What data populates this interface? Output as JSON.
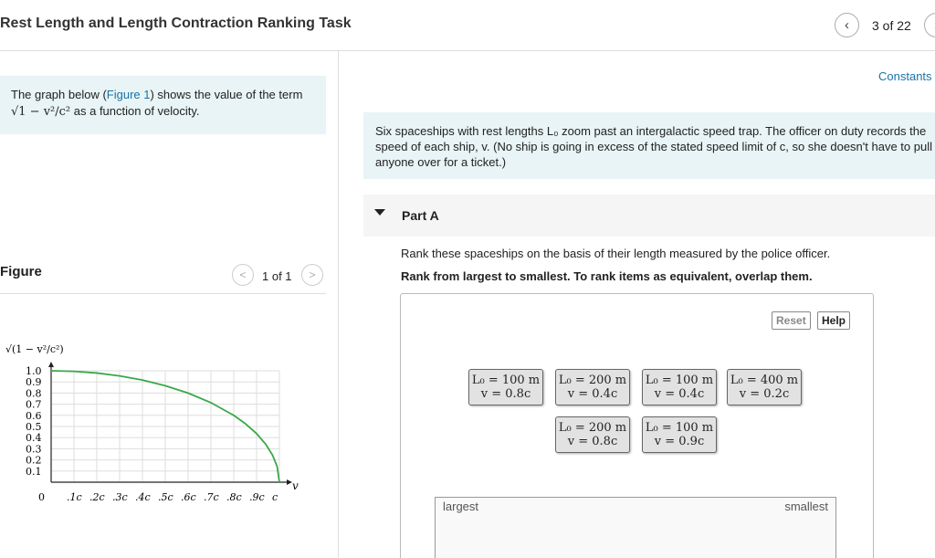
{
  "header": {
    "title": "Rest Length and Length Contraction Ranking Task",
    "pager": "3 of 22",
    "prev_icon": "chevron-left-icon",
    "next_icon": "chevron-right-icon"
  },
  "left": {
    "intro_pre": "The graph below (",
    "intro_link": "Figure 1",
    "intro_post": ") shows the value of the term",
    "intro_formula": "√1 − v²/c²",
    "intro_tail": "as a function of velocity.",
    "figure_label": "Figure",
    "figure_pager": "1 of 1"
  },
  "chart_data": {
    "type": "line",
    "ylabel": "√(1 − v²/c²)",
    "xlabel": "v",
    "x_ticks": [
      "0",
      ".1c",
      ".2c",
      ".3c",
      ".4c",
      ".5c",
      ".6c",
      ".7c",
      ".8c",
      ".9c",
      "c"
    ],
    "y_ticks": [
      "1.0",
      "0.9",
      "0.8",
      "0.7",
      "0.6",
      "0.5",
      "0.4",
      "0.3",
      "0.2",
      "0.1"
    ],
    "xlim": [
      0,
      1
    ],
    "ylim": [
      0,
      1
    ],
    "grid": true,
    "series": [
      {
        "color": "#3aa84a",
        "x": [
          0,
          0.1,
          0.2,
          0.3,
          0.4,
          0.5,
          0.6,
          0.7,
          0.8,
          0.85,
          0.9,
          0.94,
          0.97,
          0.99,
          1.0
        ],
        "y": [
          1.0,
          0.995,
          0.98,
          0.954,
          0.917,
          0.866,
          0.8,
          0.714,
          0.6,
          0.527,
          0.436,
          0.341,
          0.243,
          0.141,
          0.0
        ]
      }
    ]
  },
  "right": {
    "constants": "Constants",
    "problem_text": "Six spaceships with rest lengths L₀ zoom past an intergalactic speed trap. The officer on duty records the speed of each ship, v. (No ship is going in excess of the stated speed limit of c, so she doesn't have to pull anyone over for a ticket.)",
    "part_title": "Part A",
    "instruction1": "Rank these spaceships on the basis of their length measured by the police officer.",
    "instruction2": "Rank from largest to smallest. To rank items as equivalent, overlap them.",
    "reset": "Reset",
    "help": "Help",
    "cards": [
      {
        "l0": "L₀ = 100 m",
        "v": "v = 0.8c"
      },
      {
        "l0": "L₀ = 200 m",
        "v": "v = 0.4c"
      },
      {
        "l0": "L₀ = 100 m",
        "v": "v = 0.4c"
      },
      {
        "l0": "L₀ = 400 m",
        "v": "v = 0.2c"
      },
      {
        "l0": "L₀ = 200 m",
        "v": "v = 0.8c"
      },
      {
        "l0": "L₀ = 100 m",
        "v": "v = 0.9c"
      }
    ],
    "largest": "largest",
    "smallest": "smallest"
  }
}
